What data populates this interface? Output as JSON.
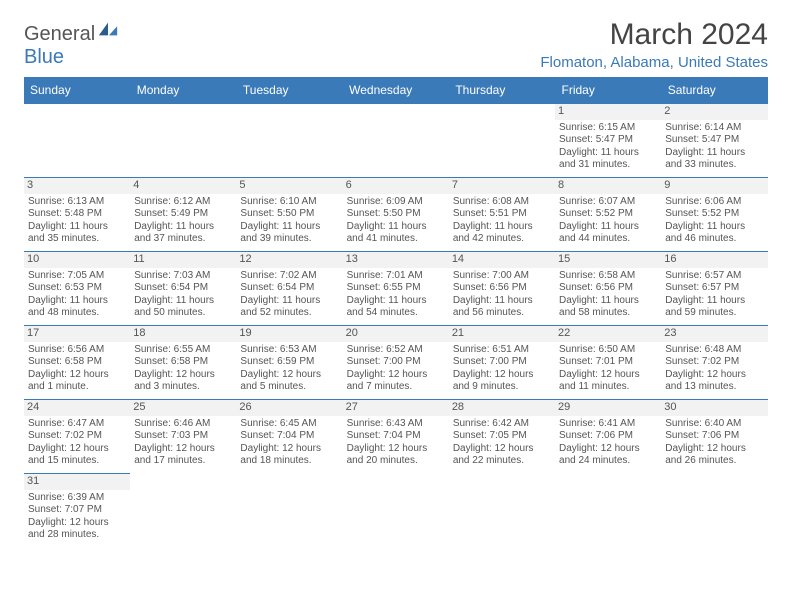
{
  "logo": {
    "text1": "General",
    "text2": "Blue"
  },
  "title": "March 2024",
  "location": "Flomaton, Alabama, United States",
  "weekdays": [
    "Sunday",
    "Monday",
    "Tuesday",
    "Wednesday",
    "Thursday",
    "Friday",
    "Saturday"
  ],
  "colors": {
    "header_bg": "#3a7ab8",
    "header_text": "#ffffff",
    "border": "#3a7ab8",
    "daynum_bg": "#f2f2f2",
    "text": "#555555",
    "background": "#ffffff"
  },
  "layout": {
    "first_weekday_index": 5,
    "days_in_month": 31
  },
  "days": {
    "1": {
      "sunrise": "6:15 AM",
      "sunset": "5:47 PM",
      "daylight": "11 hours and 31 minutes."
    },
    "2": {
      "sunrise": "6:14 AM",
      "sunset": "5:47 PM",
      "daylight": "11 hours and 33 minutes."
    },
    "3": {
      "sunrise": "6:13 AM",
      "sunset": "5:48 PM",
      "daylight": "11 hours and 35 minutes."
    },
    "4": {
      "sunrise": "6:12 AM",
      "sunset": "5:49 PM",
      "daylight": "11 hours and 37 minutes."
    },
    "5": {
      "sunrise": "6:10 AM",
      "sunset": "5:50 PM",
      "daylight": "11 hours and 39 minutes."
    },
    "6": {
      "sunrise": "6:09 AM",
      "sunset": "5:50 PM",
      "daylight": "11 hours and 41 minutes."
    },
    "7": {
      "sunrise": "6:08 AM",
      "sunset": "5:51 PM",
      "daylight": "11 hours and 42 minutes."
    },
    "8": {
      "sunrise": "6:07 AM",
      "sunset": "5:52 PM",
      "daylight": "11 hours and 44 minutes."
    },
    "9": {
      "sunrise": "6:06 AM",
      "sunset": "5:52 PM",
      "daylight": "11 hours and 46 minutes."
    },
    "10": {
      "sunrise": "7:05 AM",
      "sunset": "6:53 PM",
      "daylight": "11 hours and 48 minutes."
    },
    "11": {
      "sunrise": "7:03 AM",
      "sunset": "6:54 PM",
      "daylight": "11 hours and 50 minutes."
    },
    "12": {
      "sunrise": "7:02 AM",
      "sunset": "6:54 PM",
      "daylight": "11 hours and 52 minutes."
    },
    "13": {
      "sunrise": "7:01 AM",
      "sunset": "6:55 PM",
      "daylight": "11 hours and 54 minutes."
    },
    "14": {
      "sunrise": "7:00 AM",
      "sunset": "6:56 PM",
      "daylight": "11 hours and 56 minutes."
    },
    "15": {
      "sunrise": "6:58 AM",
      "sunset": "6:56 PM",
      "daylight": "11 hours and 58 minutes."
    },
    "16": {
      "sunrise": "6:57 AM",
      "sunset": "6:57 PM",
      "daylight": "11 hours and 59 minutes."
    },
    "17": {
      "sunrise": "6:56 AM",
      "sunset": "6:58 PM",
      "daylight": "12 hours and 1 minute."
    },
    "18": {
      "sunrise": "6:55 AM",
      "sunset": "6:58 PM",
      "daylight": "12 hours and 3 minutes."
    },
    "19": {
      "sunrise": "6:53 AM",
      "sunset": "6:59 PM",
      "daylight": "12 hours and 5 minutes."
    },
    "20": {
      "sunrise": "6:52 AM",
      "sunset": "7:00 PM",
      "daylight": "12 hours and 7 minutes."
    },
    "21": {
      "sunrise": "6:51 AM",
      "sunset": "7:00 PM",
      "daylight": "12 hours and 9 minutes."
    },
    "22": {
      "sunrise": "6:50 AM",
      "sunset": "7:01 PM",
      "daylight": "12 hours and 11 minutes."
    },
    "23": {
      "sunrise": "6:48 AM",
      "sunset": "7:02 PM",
      "daylight": "12 hours and 13 minutes."
    },
    "24": {
      "sunrise": "6:47 AM",
      "sunset": "7:02 PM",
      "daylight": "12 hours and 15 minutes."
    },
    "25": {
      "sunrise": "6:46 AM",
      "sunset": "7:03 PM",
      "daylight": "12 hours and 17 minutes."
    },
    "26": {
      "sunrise": "6:45 AM",
      "sunset": "7:04 PM",
      "daylight": "12 hours and 18 minutes."
    },
    "27": {
      "sunrise": "6:43 AM",
      "sunset": "7:04 PM",
      "daylight": "12 hours and 20 minutes."
    },
    "28": {
      "sunrise": "6:42 AM",
      "sunset": "7:05 PM",
      "daylight": "12 hours and 22 minutes."
    },
    "29": {
      "sunrise": "6:41 AM",
      "sunset": "7:06 PM",
      "daylight": "12 hours and 24 minutes."
    },
    "30": {
      "sunrise": "6:40 AM",
      "sunset": "7:06 PM",
      "daylight": "12 hours and 26 minutes."
    },
    "31": {
      "sunrise": "6:39 AM",
      "sunset": "7:07 PM",
      "daylight": "12 hours and 28 minutes."
    }
  },
  "labels": {
    "sunrise": "Sunrise:",
    "sunset": "Sunset:",
    "daylight": "Daylight:"
  }
}
